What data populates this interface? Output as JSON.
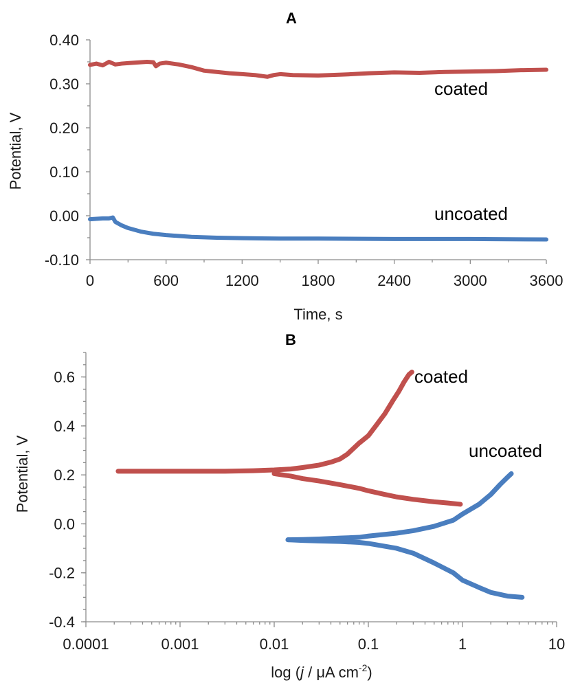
{
  "chart_data": [
    {
      "type": "line",
      "title": "A",
      "xlabel": "Time, s",
      "ylabel": "Potential,  V",
      "xlim": [
        0,
        3600
      ],
      "ylim": [
        -0.1,
        0.4
      ],
      "xticks": [
        "0",
        "600",
        "1200",
        "1800",
        "2400",
        "3000",
        "3600"
      ],
      "yticks": [
        "-0.10",
        "0.00",
        "0.10",
        "0.20",
        "0.30",
        "0.40"
      ],
      "series": [
        {
          "name": "coated",
          "color": "#c0504d",
          "x": [
            0,
            50,
            100,
            150,
            200,
            250,
            300,
            350,
            400,
            450,
            500,
            520,
            550,
            600,
            700,
            800,
            900,
            1000,
            1100,
            1200,
            1300,
            1350,
            1400,
            1450,
            1500,
            1600,
            1800,
            2000,
            2200,
            2400,
            2600,
            2800,
            3000,
            3200,
            3400,
            3600
          ],
          "y": [
            0.343,
            0.346,
            0.342,
            0.35,
            0.344,
            0.346,
            0.347,
            0.348,
            0.349,
            0.35,
            0.349,
            0.34,
            0.346,
            0.348,
            0.344,
            0.338,
            0.33,
            0.327,
            0.324,
            0.322,
            0.32,
            0.318,
            0.316,
            0.32,
            0.322,
            0.32,
            0.319,
            0.321,
            0.324,
            0.326,
            0.325,
            0.327,
            0.328,
            0.329,
            0.331,
            0.332
          ]
        },
        {
          "name": "uncoated",
          "color": "#4a7ebf",
          "x": [
            0,
            50,
            100,
            150,
            180,
            200,
            250,
            300,
            400,
            500,
            600,
            800,
            1000,
            1200,
            1500,
            1800,
            2400,
            3000,
            3600
          ],
          "y": [
            -0.008,
            -0.007,
            -0.006,
            -0.006,
            -0.004,
            -0.014,
            -0.022,
            -0.028,
            -0.036,
            -0.041,
            -0.044,
            -0.048,
            -0.05,
            -0.051,
            -0.052,
            -0.052,
            -0.053,
            -0.053,
            -0.054
          ]
        }
      ],
      "annotations": [
        "coated",
        "uncoated"
      ]
    },
    {
      "type": "line",
      "title": "B",
      "xlabel": "log (j / μA cm−2)",
      "xlabel_parts": [
        "log (",
        "j",
        " / μA cm",
        "-2",
        ")"
      ],
      "ylabel": "Potential, V",
      "xscale": "log",
      "xlim": [
        0.0001,
        10
      ],
      "ylim": [
        -0.4,
        0.7
      ],
      "xticks": [
        "0.0001",
        "0.001",
        "0.01",
        "0.1",
        "1",
        "10"
      ],
      "yticks": [
        "-0.4",
        "-0.2",
        "0.0",
        "0.2",
        "0.4",
        "0.6"
      ],
      "series": [
        {
          "name": "coated",
          "color": "#c0504d",
          "branches": [
            {
              "x": [
                0.00022,
                0.0005,
                0.001,
                0.003,
                0.006,
                0.01,
                0.015,
                0.02,
                0.03,
                0.04,
                0.05,
                0.06,
                0.08,
                0.1,
                0.12,
                0.15,
                0.18,
                0.21,
                0.24,
                0.27,
                0.29
              ],
              "y": [
                0.215,
                0.215,
                0.215,
                0.215,
                0.217,
                0.22,
                0.224,
                0.23,
                0.24,
                0.252,
                0.265,
                0.285,
                0.33,
                0.36,
                0.4,
                0.45,
                0.5,
                0.54,
                0.58,
                0.61,
                0.62
              ]
            },
            {
              "x": [
                0.01,
                0.015,
                0.02,
                0.03,
                0.05,
                0.08,
                0.1,
                0.15,
                0.2,
                0.3,
                0.5,
                0.7,
                0.95
              ],
              "y": [
                0.205,
                0.195,
                0.185,
                0.175,
                0.16,
                0.145,
                0.135,
                0.12,
                0.11,
                0.1,
                0.09,
                0.085,
                0.08
              ]
            }
          ]
        },
        {
          "name": "uncoated",
          "color": "#4a7ebf",
          "branches": [
            {
              "x": [
                0.014,
                0.02,
                0.03,
                0.05,
                0.08,
                0.1,
                0.2,
                0.3,
                0.5,
                0.8,
                1.0,
                1.5,
                2.0,
                2.5,
                3.0,
                3.3
              ],
              "y": [
                -0.065,
                -0.064,
                -0.062,
                -0.058,
                -0.055,
                -0.05,
                -0.038,
                -0.028,
                -0.01,
                0.015,
                0.04,
                0.08,
                0.12,
                0.16,
                0.19,
                0.205
              ]
            },
            {
              "x": [
                0.014,
                0.02,
                0.03,
                0.05,
                0.08,
                0.1,
                0.2,
                0.3,
                0.5,
                0.8,
                1.0,
                1.5,
                2.0,
                3.0,
                4.3
              ],
              "y": [
                -0.065,
                -0.068,
                -0.07,
                -0.072,
                -0.076,
                -0.08,
                -0.1,
                -0.12,
                -0.16,
                -0.2,
                -0.23,
                -0.26,
                -0.28,
                -0.295,
                -0.3
              ]
            }
          ]
        }
      ],
      "annotations": [
        "coated",
        "uncoated"
      ]
    }
  ]
}
